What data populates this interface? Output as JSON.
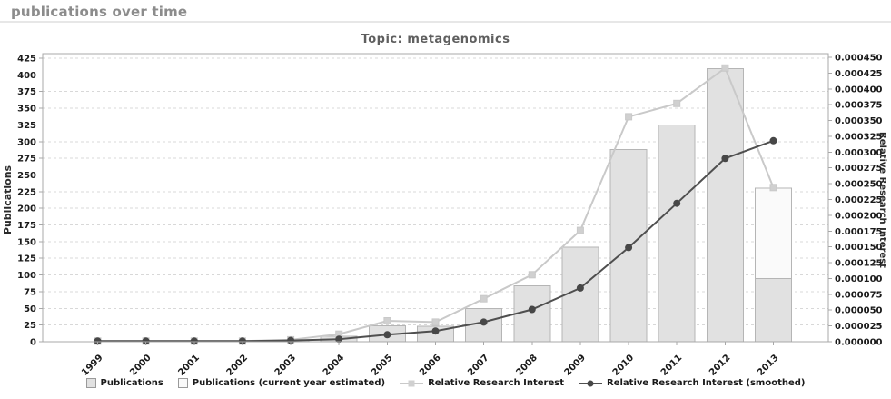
{
  "page": {
    "header": "publications over time"
  },
  "chart_data": {
    "type": "bar",
    "title": "Topic: metagenomics",
    "categories": [
      "1999",
      "2000",
      "2001",
      "2002",
      "2003",
      "2004",
      "2005",
      "2006",
      "2007",
      "2008",
      "2009",
      "2010",
      "2011",
      "2012",
      "2013"
    ],
    "series": [
      {
        "name": "Publications",
        "type": "bar",
        "axis": "left",
        "swatch": "square-filled",
        "values": [
          0,
          0,
          0,
          0,
          2,
          8,
          24,
          23,
          50,
          84,
          142,
          288,
          325,
          409,
          95
        ]
      },
      {
        "name": "Publications (current year estimated)",
        "type": "bar-estimate",
        "axis": "left",
        "swatch": "square-empty",
        "values": [
          null,
          null,
          null,
          null,
          null,
          null,
          null,
          null,
          null,
          null,
          null,
          null,
          null,
          null,
          230
        ]
      },
      {
        "name": "Relative Research Interest",
        "type": "line",
        "axis": "right",
        "swatch": "line-square",
        "marker": "square",
        "values": [
          1e-06,
          1e-06,
          1e-06,
          1e-06,
          3e-06,
          1.2e-05,
          3.3e-05,
          3.1e-05,
          6.8e-05,
          0.000106,
          0.000176,
          0.000356,
          0.000377,
          0.000433,
          0.000244
        ]
      },
      {
        "name": "Relative Research Interest (smoothed)",
        "type": "line",
        "axis": "right",
        "swatch": "line-circle",
        "marker": "circle",
        "values": [
          1e-06,
          1e-06,
          1e-06,
          1e-06,
          2e-06,
          4e-06,
          1.1e-05,
          1.7e-05,
          3.1e-05,
          5.1e-05,
          8.5e-05,
          0.000149,
          0.000219,
          0.00029,
          0.000318
        ]
      }
    ],
    "left_axis": {
      "label": "Publications",
      "min": 0,
      "max": 425,
      "step": 25
    },
    "right_axis": {
      "label": "Relative Research Interest",
      "min": 0,
      "max": 0.00045,
      "step": 2.5e-05,
      "decimals": 6
    },
    "grid": "horizontal-dashed",
    "legend_position": "bottom",
    "colors": {
      "bar_fill": "#e1e1e1",
      "bar_estimate_fill": "#fafafa",
      "bar_border": "#b5b5b5",
      "line_light": "#c9c9c9",
      "marker_light": "#d0d0d0",
      "line_dark": "#4f4f4f",
      "marker_dark": "#474747",
      "grid": "#d8d8d8",
      "axis": "#a8a8a8",
      "tick_text": "#1a1a1a",
      "axis_label_text": "#2a2a2a"
    }
  }
}
